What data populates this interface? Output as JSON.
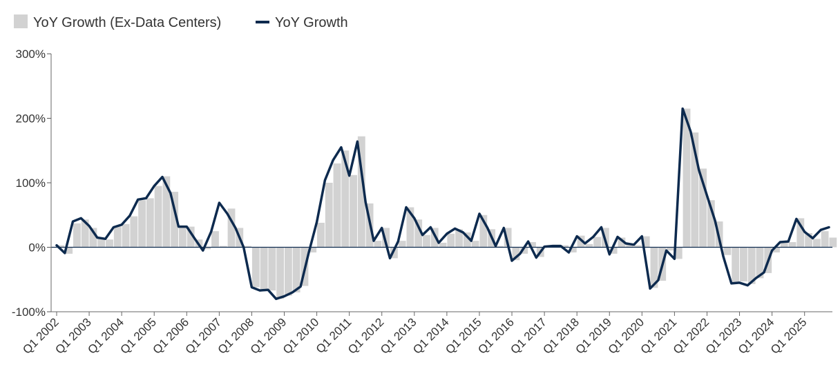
{
  "chart_data": {
    "type": "bar+line",
    "title": "",
    "xlabel": "",
    "ylabel": "",
    "ylim": [
      -100,
      300
    ],
    "y_ticks": [
      "300%",
      "200%",
      "100%",
      "0%",
      "-100%"
    ],
    "y_tick_values": [
      300,
      200,
      100,
      0,
      -100
    ],
    "x_tick_labels": [
      "Q1 2002",
      "Q1 2003",
      "Q1 2004",
      "Q1 2005",
      "Q1 2006",
      "Q1 2007",
      "Q1 2008",
      "Q1 2009",
      "Q1 2010",
      "Q1 2011",
      "Q1 2012",
      "Q1 2013",
      "Q1 2014",
      "Q1 2015",
      "Q1 2016",
      "Q1 2017",
      "Q1 2018",
      "Q1 2019",
      "Q1 2020",
      "Q1 2021",
      "Q1 2022",
      "Q1 2023",
      "Q1 2024",
      "Q1 2025"
    ],
    "legend": [
      {
        "label": "YoY Growth (Ex-Data Centers)",
        "color": "#d2d2d2",
        "kind": "bar"
      },
      {
        "label": "YoY Growth",
        "color": "#0d2a4e",
        "kind": "line"
      }
    ],
    "legend_position": "top-left",
    "series": [
      {
        "name": "YoY Growth (Ex-Data Centers)",
        "type": "bar",
        "color": "#d2d2d2",
        "values": [
          3,
          -10,
          37,
          43,
          30,
          14,
          12,
          32,
          36,
          48,
          73,
          76,
          95,
          110,
          86,
          32,
          32,
          12,
          -3,
          25,
          2,
          60,
          30,
          2,
          -62,
          -65,
          -67,
          -80,
          -75,
          -70,
          -60,
          -8,
          38,
          100,
          130,
          150,
          112,
          172,
          68,
          10,
          30,
          -17,
          10,
          62,
          43,
          19,
          30,
          7,
          21,
          28,
          23,
          10,
          50,
          28,
          2,
          30,
          -20,
          -10,
          8,
          -15,
          2,
          4,
          3,
          -8,
          18,
          5,
          16,
          30,
          -10,
          15,
          5,
          3,
          17,
          -63,
          -52,
          -5,
          -18,
          215,
          178,
          122,
          73,
          40,
          -12,
          -55,
          -53,
          -57,
          -48,
          -40,
          -8,
          8,
          8,
          45,
          22,
          13,
          25,
          15
        ]
      },
      {
        "name": "YoY Growth",
        "type": "line",
        "color": "#0d2a4e",
        "values": [
          3,
          -9,
          40,
          45,
          33,
          15,
          13,
          31,
          35,
          49,
          74,
          76,
          95,
          109,
          84,
          32,
          32,
          13,
          -5,
          24,
          69,
          52,
          30,
          0,
          -62,
          -67,
          -66,
          -80,
          -76,
          -70,
          -61,
          -9,
          39,
          104,
          135,
          155,
          111,
          164,
          70,
          10,
          30,
          -17,
          9,
          62,
          45,
          19,
          31,
          7,
          21,
          29,
          23,
          10,
          52,
          30,
          2,
          30,
          -21,
          -10,
          9,
          -16,
          1,
          2,
          2,
          -8,
          17,
          6,
          16,
          31,
          -11,
          16,
          6,
          4,
          17,
          -64,
          -51,
          -5,
          -18,
          215,
          179,
          120,
          80,
          41,
          -14,
          -56,
          -55,
          -59,
          -48,
          -39,
          -5,
          8,
          9,
          44,
          24,
          14,
          27,
          31
        ]
      }
    ]
  }
}
